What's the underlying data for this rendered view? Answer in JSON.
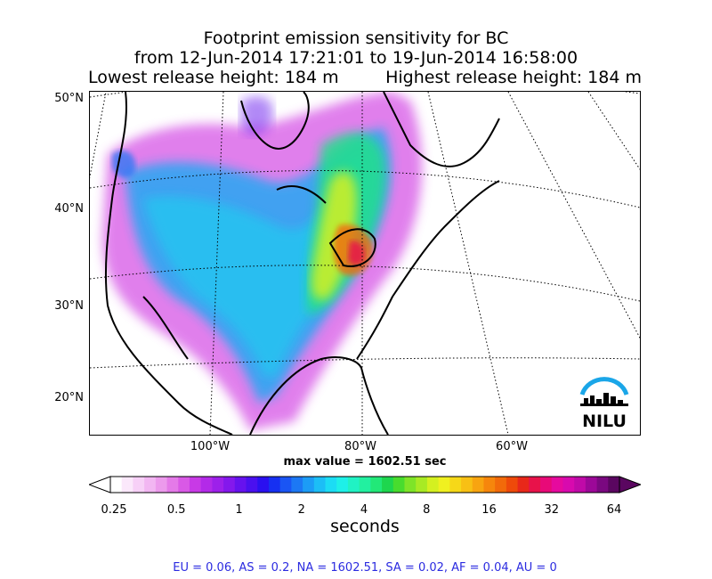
{
  "title": {
    "line1": "Footprint emission sensitivity for BC",
    "line2": "from 12-Jun-2014 17:21:01 to 19-Jun-2014 16:58:00",
    "lowest_release": "Lowest release height: 184 m",
    "highest_release": "Highest release height: 184 m"
  },
  "map": {
    "lat_labels": [
      "50°N",
      "40°N",
      "30°N",
      "20°N"
    ],
    "lon_labels": [
      "100°W",
      "80°W",
      "60°W"
    ],
    "logo_text": "NILU"
  },
  "max_value": "max value = 1602.51 sec",
  "colorbar": {
    "ticks": [
      "0.25",
      "0.5",
      "1",
      "2",
      "4",
      "8",
      "16",
      "32",
      "64"
    ],
    "units": "seconds",
    "colors": [
      "#ffffff",
      "#fbe8fb",
      "#f7d0f7",
      "#f2b6f2",
      "#ec9aec",
      "#e47ae8",
      "#d959e6",
      "#c83ae6",
      "#b32ae8",
      "#9d20ea",
      "#8418ec",
      "#6612ee",
      "#4a10ef",
      "#2a10f0",
      "#1630f2",
      "#1a55f4",
      "#1c78f4",
      "#1c9cf6",
      "#1cbef6",
      "#1cdcf4",
      "#1ef0e8",
      "#20f2c4",
      "#22f0a0",
      "#22e878",
      "#1ed64e",
      "#48dc2e",
      "#7ee428",
      "#a8ea24",
      "#d4f020",
      "#f0f020",
      "#f6d818",
      "#f8c014",
      "#f8a410",
      "#f6860c",
      "#f26a0a",
      "#ee4a0a",
      "#e8281a",
      "#e8124a",
      "#e80a78",
      "#e60a9e",
      "#d80aae",
      "#c00aa8",
      "#9c0898",
      "#7a0880",
      "#5a0660"
    ]
  },
  "footer": "EU = 0.06,  AS = 0.2,  NA = 1602.51,  SA = 0.02,  AF = 0.04,  AU = 0"
}
